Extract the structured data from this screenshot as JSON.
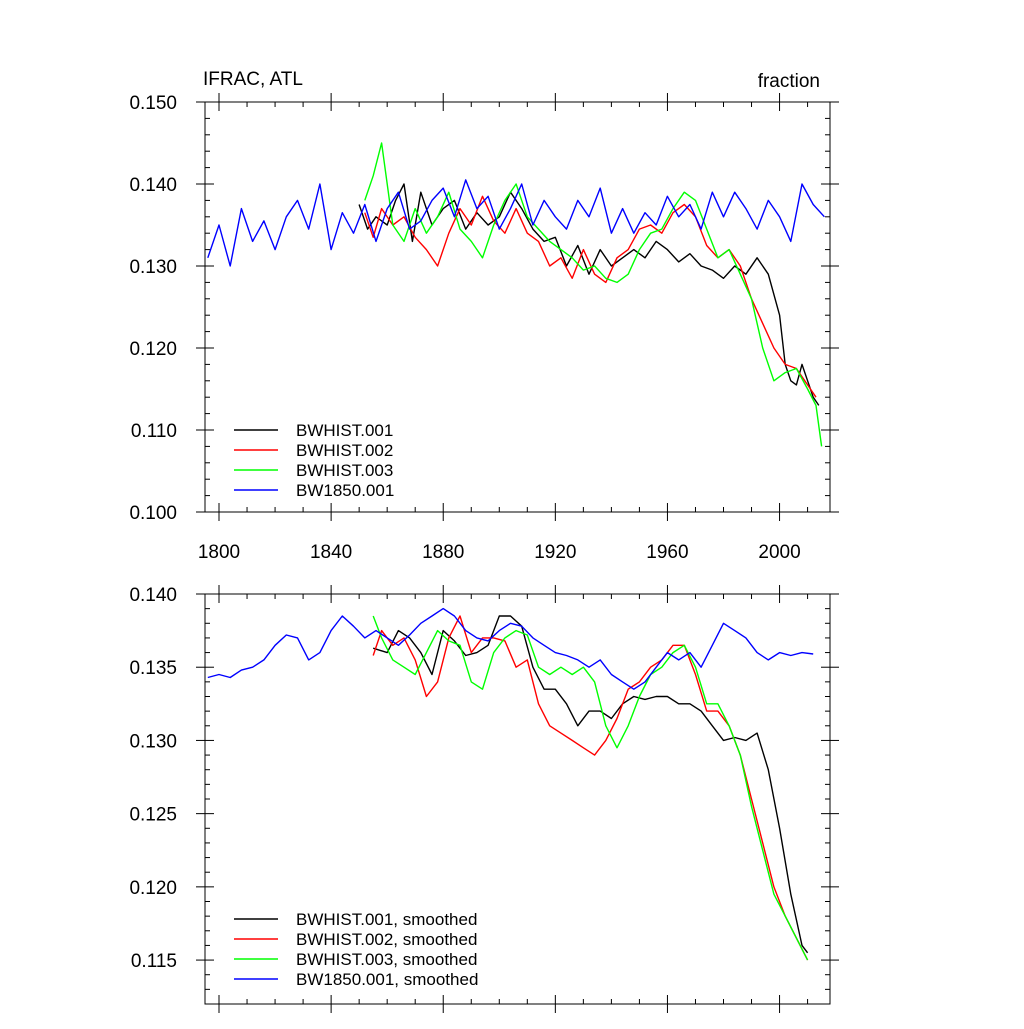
{
  "chart_data": [
    {
      "type": "line",
      "title": "IFRAC, ATL",
      "units": "fraction",
      "xlabel": "",
      "ylabel": "",
      "xlim": [
        1795,
        2018
      ],
      "ylim": [
        0.1,
        0.15
      ],
      "x_ticks": [
        "1800",
        "1840",
        "1880",
        "1920",
        "1960",
        "2000"
      ],
      "y_ticks": [
        "0.150",
        "0.140",
        "0.130",
        "0.120",
        "0.110",
        "0.100"
      ],
      "legend_position": "bottom-left",
      "series": [
        {
          "name": "BWHIST.001",
          "color": "#000000",
          "x": [
            1850,
            1853,
            1856,
            1860,
            1863,
            1866,
            1869,
            1872,
            1876,
            1880,
            1884,
            1888,
            1892,
            1896,
            1900,
            1904,
            1908,
            1912,
            1916,
            1920,
            1924,
            1928,
            1932,
            1936,
            1940,
            1944,
            1948,
            1952,
            1956,
            1960,
            1964,
            1968,
            1972,
            1976,
            1980,
            1984,
            1988,
            1992,
            1996,
            2000,
            2002,
            2004,
            2006,
            2008,
            2010,
            2012,
            2014
          ],
          "y": [
            0.1375,
            0.1345,
            0.136,
            0.135,
            0.138,
            0.14,
            0.133,
            0.139,
            0.135,
            0.137,
            0.138,
            0.1345,
            0.1365,
            0.135,
            0.136,
            0.139,
            0.137,
            0.1345,
            0.133,
            0.1335,
            0.13,
            0.1325,
            0.129,
            0.132,
            0.13,
            0.131,
            0.132,
            0.131,
            0.133,
            0.132,
            0.1305,
            0.1315,
            0.13,
            0.1295,
            0.1285,
            0.13,
            0.129,
            0.131,
            0.129,
            0.124,
            0.118,
            0.116,
            0.1155,
            0.118,
            0.116,
            0.114,
            0.113
          ]
        },
        {
          "name": "BWHIST.002",
          "color": "#ff0000",
          "x": [
            1852,
            1855,
            1858,
            1862,
            1866,
            1870,
            1874,
            1878,
            1882,
            1886,
            1890,
            1894,
            1898,
            1902,
            1906,
            1910,
            1914,
            1918,
            1922,
            1926,
            1930,
            1934,
            1938,
            1942,
            1946,
            1950,
            1954,
            1958,
            1962,
            1966,
            1970,
            1974,
            1978,
            1982,
            1986,
            1990,
            1994,
            1998,
            2002,
            2006,
            2010,
            2013
          ],
          "y": [
            0.1365,
            0.1335,
            0.137,
            0.135,
            0.136,
            0.1335,
            0.132,
            0.13,
            0.134,
            0.137,
            0.135,
            0.1385,
            0.1355,
            0.134,
            0.137,
            0.134,
            0.133,
            0.13,
            0.131,
            0.1285,
            0.132,
            0.129,
            0.128,
            0.131,
            0.132,
            0.1345,
            0.135,
            0.134,
            0.1365,
            0.1375,
            0.136,
            0.1325,
            0.131,
            0.132,
            0.13,
            0.126,
            0.123,
            0.12,
            0.118,
            0.1175,
            0.1155,
            0.114
          ]
        },
        {
          "name": "BWHIST.003",
          "color": "#00ff00",
          "x": [
            1852,
            1855,
            1858,
            1862,
            1866,
            1870,
            1874,
            1878,
            1882,
            1886,
            1890,
            1894,
            1898,
            1902,
            1906,
            1910,
            1914,
            1918,
            1922,
            1926,
            1930,
            1934,
            1938,
            1942,
            1946,
            1950,
            1954,
            1958,
            1962,
            1966,
            1970,
            1974,
            1978,
            1982,
            1986,
            1990,
            1994,
            1998,
            2002,
            2006,
            2010,
            2013,
            2015
          ],
          "y": [
            0.138,
            0.141,
            0.145,
            0.135,
            0.133,
            0.137,
            0.134,
            0.136,
            0.139,
            0.1345,
            0.133,
            0.131,
            0.135,
            0.138,
            0.14,
            0.136,
            0.1345,
            0.133,
            0.132,
            0.131,
            0.1295,
            0.13,
            0.1285,
            0.128,
            0.129,
            0.132,
            0.134,
            0.1345,
            0.137,
            0.139,
            0.138,
            0.1345,
            0.131,
            0.132,
            0.129,
            0.126,
            0.12,
            0.116,
            0.117,
            0.1175,
            0.115,
            0.113,
            0.108
          ]
        },
        {
          "name": "BW1850.001",
          "color": "#0000ff",
          "x": [
            1796,
            1800,
            1804,
            1808,
            1812,
            1816,
            1820,
            1824,
            1828,
            1832,
            1836,
            1840,
            1844,
            1848,
            1852,
            1856,
            1860,
            1864,
            1868,
            1872,
            1876,
            1880,
            1884,
            1888,
            1892,
            1896,
            1900,
            1904,
            1908,
            1912,
            1916,
            1920,
            1924,
            1928,
            1932,
            1936,
            1940,
            1944,
            1948,
            1952,
            1956,
            1960,
            1964,
            1968,
            1972,
            1976,
            1980,
            1984,
            1988,
            1992,
            1996,
            2000,
            2004,
            2008,
            2012,
            2016
          ],
          "y": [
            0.131,
            0.135,
            0.13,
            0.137,
            0.133,
            0.1355,
            0.132,
            0.136,
            0.138,
            0.1345,
            0.14,
            0.132,
            0.1365,
            0.134,
            0.1375,
            0.133,
            0.137,
            0.139,
            0.1345,
            0.1355,
            0.138,
            0.1395,
            0.136,
            0.1405,
            0.137,
            0.1385,
            0.1345,
            0.137,
            0.14,
            0.135,
            0.138,
            0.136,
            0.1345,
            0.138,
            0.136,
            0.1395,
            0.134,
            0.137,
            0.134,
            0.1365,
            0.135,
            0.1385,
            0.136,
            0.1375,
            0.1345,
            0.139,
            0.136,
            0.139,
            0.137,
            0.1345,
            0.138,
            0.136,
            0.133,
            0.14,
            0.1375,
            0.136
          ]
        }
      ]
    },
    {
      "type": "line",
      "title": "",
      "xlabel": "",
      "ylabel": "",
      "xlim": [
        1795,
        2018
      ],
      "ylim": [
        0.112,
        0.14
      ],
      "y_ticks": [
        "0.140",
        "0.135",
        "0.130",
        "0.125",
        "0.120",
        "0.115"
      ],
      "legend_position": "bottom-left",
      "series": [
        {
          "name": "BWHIST.001, smoothed",
          "color": "#000000",
          "x": [
            1855,
            1860,
            1864,
            1868,
            1872,
            1876,
            1880,
            1884,
            1888,
            1892,
            1896,
            1900,
            1904,
            1908,
            1912,
            1916,
            1920,
            1924,
            1928,
            1932,
            1936,
            1940,
            1944,
            1948,
            1952,
            1956,
            1960,
            1964,
            1968,
            1972,
            1976,
            1980,
            1984,
            1988,
            1992,
            1996,
            2000,
            2004,
            2008,
            2010
          ],
          "y": [
            0.1363,
            0.136,
            0.1375,
            0.137,
            0.136,
            0.1345,
            0.1375,
            0.1368,
            0.1358,
            0.136,
            0.1365,
            0.1385,
            0.1385,
            0.1378,
            0.135,
            0.1335,
            0.1335,
            0.1325,
            0.131,
            0.132,
            0.132,
            0.1315,
            0.1325,
            0.133,
            0.1328,
            0.133,
            0.133,
            0.1325,
            0.1325,
            0.132,
            0.131,
            0.13,
            0.1302,
            0.13,
            0.1305,
            0.128,
            0.124,
            0.1195,
            0.116,
            0.1155
          ]
        },
        {
          "name": "BWHIST.002, smoothed",
          "color": "#ff0000",
          "x": [
            1855,
            1858,
            1862,
            1866,
            1870,
            1874,
            1878,
            1882,
            1886,
            1890,
            1894,
            1898,
            1902,
            1906,
            1910,
            1914,
            1918,
            1922,
            1926,
            1930,
            1934,
            1938,
            1942,
            1946,
            1950,
            1954,
            1958,
            1962,
            1966,
            1970,
            1974,
            1978,
            1982,
            1986,
            1990,
            1994,
            1998,
            2002,
            2006,
            2010
          ],
          "y": [
            0.1358,
            0.1375,
            0.1365,
            0.137,
            0.1355,
            0.133,
            0.134,
            0.137,
            0.1385,
            0.136,
            0.137,
            0.137,
            0.1368,
            0.135,
            0.1355,
            0.1325,
            0.131,
            0.1305,
            0.13,
            0.1295,
            0.129,
            0.13,
            0.1315,
            0.1335,
            0.134,
            0.135,
            0.1355,
            0.1365,
            0.1365,
            0.1345,
            0.132,
            0.132,
            0.131,
            0.129,
            0.126,
            0.123,
            0.12,
            0.118,
            0.1165,
            0.115
          ]
        },
        {
          "name": "BWHIST.003, smoothed",
          "color": "#00ff00",
          "x": [
            1855,
            1858,
            1862,
            1866,
            1870,
            1874,
            1878,
            1882,
            1886,
            1890,
            1894,
            1898,
            1902,
            1906,
            1910,
            1914,
            1918,
            1922,
            1926,
            1930,
            1934,
            1938,
            1942,
            1946,
            1950,
            1954,
            1958,
            1962,
            1966,
            1970,
            1974,
            1978,
            1982,
            1986,
            1990,
            1994,
            1998,
            2002,
            2006,
            2010
          ],
          "y": [
            0.1385,
            0.137,
            0.1355,
            0.135,
            0.1345,
            0.136,
            0.1375,
            0.1368,
            0.1365,
            0.134,
            0.1335,
            0.136,
            0.137,
            0.1375,
            0.1372,
            0.135,
            0.1345,
            0.135,
            0.1345,
            0.135,
            0.134,
            0.131,
            0.1295,
            0.131,
            0.133,
            0.1345,
            0.135,
            0.136,
            0.1365,
            0.135,
            0.1325,
            0.1325,
            0.131,
            0.129,
            0.1255,
            0.1225,
            0.1195,
            0.118,
            0.1165,
            0.115
          ]
        },
        {
          "name": "BW1850.001, smoothed",
          "color": "#0000ff",
          "x": [
            1796,
            1800,
            1804,
            1808,
            1812,
            1816,
            1820,
            1824,
            1828,
            1832,
            1836,
            1840,
            1844,
            1848,
            1852,
            1856,
            1860,
            1864,
            1868,
            1872,
            1876,
            1880,
            1884,
            1888,
            1892,
            1896,
            1900,
            1904,
            1908,
            1912,
            1916,
            1920,
            1924,
            1928,
            1932,
            1936,
            1940,
            1944,
            1948,
            1952,
            1956,
            1960,
            1964,
            1968,
            1972,
            1976,
            1980,
            1984,
            1988,
            1992,
            1996,
            2000,
            2004,
            2008,
            2012
          ],
          "y": [
            0.1343,
            0.1345,
            0.1343,
            0.1348,
            0.135,
            0.1355,
            0.1365,
            0.1372,
            0.137,
            0.1355,
            0.136,
            0.1375,
            0.1385,
            0.1378,
            0.137,
            0.1375,
            0.137,
            0.1365,
            0.1372,
            0.138,
            0.1385,
            0.139,
            0.1385,
            0.1375,
            0.137,
            0.1368,
            0.1375,
            0.138,
            0.1378,
            0.137,
            0.1365,
            0.136,
            0.1358,
            0.1355,
            0.135,
            0.1355,
            0.1345,
            0.134,
            0.1335,
            0.134,
            0.135,
            0.136,
            0.1355,
            0.136,
            0.135,
            0.1365,
            0.138,
            0.1375,
            0.137,
            0.136,
            0.1355,
            0.136,
            0.1358,
            0.136,
            0.1359
          ]
        }
      ]
    }
  ]
}
